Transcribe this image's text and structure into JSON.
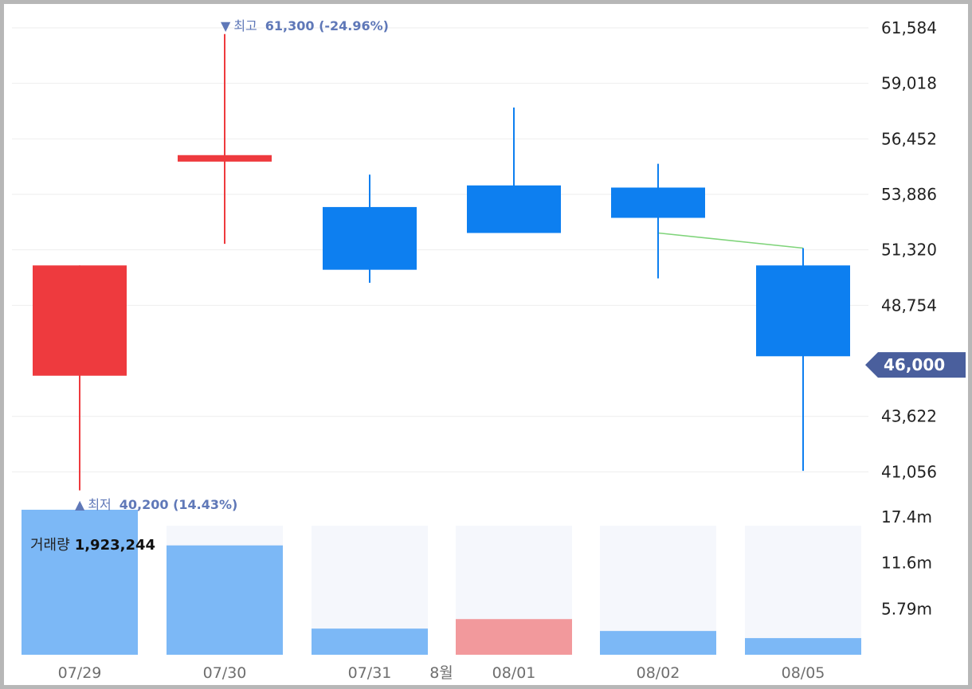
{
  "chart_data": {
    "type": "candlestick",
    "categories": [
      "07/29",
      "07/30",
      "07/31",
      "08/01",
      "08/02",
      "08/05"
    ],
    "month_marker": "8월",
    "candles": [
      {
        "date": "07/29",
        "open": 45500,
        "close": 50600,
        "high": 50600,
        "low": 40200,
        "dir": "up"
      },
      {
        "date": "07/30",
        "open": 55400,
        "close": 55700,
        "high": 61300,
        "low": 51600,
        "dir": "up"
      },
      {
        "date": "07/31",
        "open": 53300,
        "close": 50400,
        "high": 54800,
        "low": 49800,
        "dir": "down"
      },
      {
        "date": "08/01",
        "open": 54300,
        "close": 52100,
        "high": 57900,
        "low": 52100,
        "dir": "down"
      },
      {
        "date": "08/02",
        "open": 54200,
        "close": 52800,
        "high": 55300,
        "low": 50000,
        "dir": "down"
      },
      {
        "date": "08/05",
        "open": 50600,
        "close": 46400,
        "high": 51400,
        "low": 41100,
        "dir": "down"
      }
    ],
    "ma_line": [
      {
        "date": "08/02",
        "value": 52100
      },
      {
        "date": "08/05",
        "value": 51400
      }
    ],
    "y_ticks": [
      61584,
      59018,
      56452,
      53886,
      51320,
      48754,
      43622,
      41056
    ],
    "y_tick_labels": [
      "61,584",
      "59,018",
      "56,452",
      "53,886",
      "51,320",
      "48,754",
      "43,622",
      "41,056"
    ],
    "current_price": 46000,
    "current_price_label": "46,000",
    "high_annotation": {
      "date": "07/30",
      "value": 61300,
      "marker": "▼",
      "label": "최고",
      "value_text": "61,300 (-24.96%)"
    },
    "low_annotation": {
      "date": "07/29",
      "value": 40200,
      "marker": "▲",
      "label": "최저",
      "value_text": "40,200 (14.43%)"
    },
    "volume": {
      "title": "거래량",
      "current_value": "1,923,244",
      "values": [
        18300000,
        13800000,
        3300000,
        4500000,
        3000000,
        2100000
      ],
      "dir": [
        "down",
        "down",
        "down",
        "up",
        "down",
        "down"
      ],
      "ticks": [
        17400000,
        11600000,
        5790000
      ],
      "tick_labels": [
        "17.4m",
        "11.6m",
        "5.79m"
      ]
    },
    "colors": {
      "up": "#ee3a3e",
      "down": "#0d7ff0",
      "vol_up": "#f2999c",
      "vol_down": "#7cb8f6",
      "vol_bg": "#f5f7fc",
      "ma": "#7fd47a",
      "tag": "#4a5f9d",
      "annotation": "#5f78b8"
    }
  }
}
